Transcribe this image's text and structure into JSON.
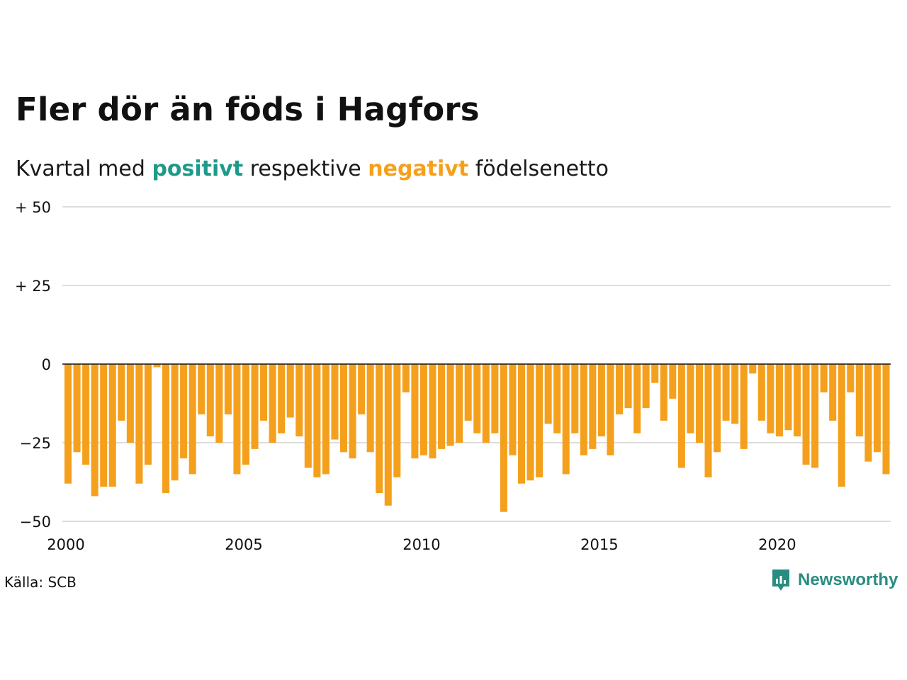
{
  "title": "Fler dör än föds i Hagfors",
  "subtitle": {
    "prefix": "Kvartal med",
    "positive_word": "positivt",
    "middle": "respektive",
    "negative_word": "negativt",
    "suffix": "födelsenetto"
  },
  "source": "Källa: SCB",
  "logo": {
    "text": "Newsworthy",
    "icon": "newsworthy-logo-icon"
  },
  "colors": {
    "positive": "#1e9a8a",
    "negative": "#f5a01c",
    "grid": "#dddddd",
    "zero_line": "#111111"
  },
  "chart_data": {
    "type": "bar",
    "x_start": "2000",
    "x_period": "quarter",
    "ylim": [
      -50,
      50
    ],
    "y_ticks": [
      {
        "value": 50,
        "label": "+ 50"
      },
      {
        "value": 25,
        "label": "+ 25"
      },
      {
        "value": 0,
        "label": "0"
      },
      {
        "value": -25,
        "label": "−25"
      },
      {
        "value": -50,
        "label": "−50"
      }
    ],
    "x_ticks": [
      "2000",
      "2005",
      "2010",
      "2015",
      "2020"
    ],
    "values": [
      -38,
      -28,
      -32,
      -42,
      -39,
      -39,
      -18,
      -25,
      -38,
      -32,
      -1,
      -41,
      -37,
      -30,
      -35,
      -16,
      -23,
      -25,
      -16,
      -35,
      -32,
      -27,
      -18,
      -25,
      -22,
      -17,
      -23,
      -33,
      -36,
      -35,
      -24,
      -28,
      -30,
      -16,
      -28,
      -41,
      -45,
      -36,
      -9,
      -30,
      -29,
      -30,
      -27,
      -26,
      -25,
      -18,
      -22,
      -25,
      -22,
      -47,
      -29,
      -38,
      -37,
      -36,
      -19,
      -22,
      -35,
      -22,
      -29,
      -27,
      -23,
      -29,
      -16,
      -14,
      -22,
      -14,
      -6,
      -18,
      -11,
      -33,
      -22,
      -25,
      -36,
      -28,
      -18,
      -19,
      -27,
      -3,
      -18,
      -22,
      -23,
      -21,
      -23,
      -32,
      -33,
      -9,
      -18,
      -39,
      -9,
      -23,
      -31,
      -28,
      -35
    ]
  }
}
